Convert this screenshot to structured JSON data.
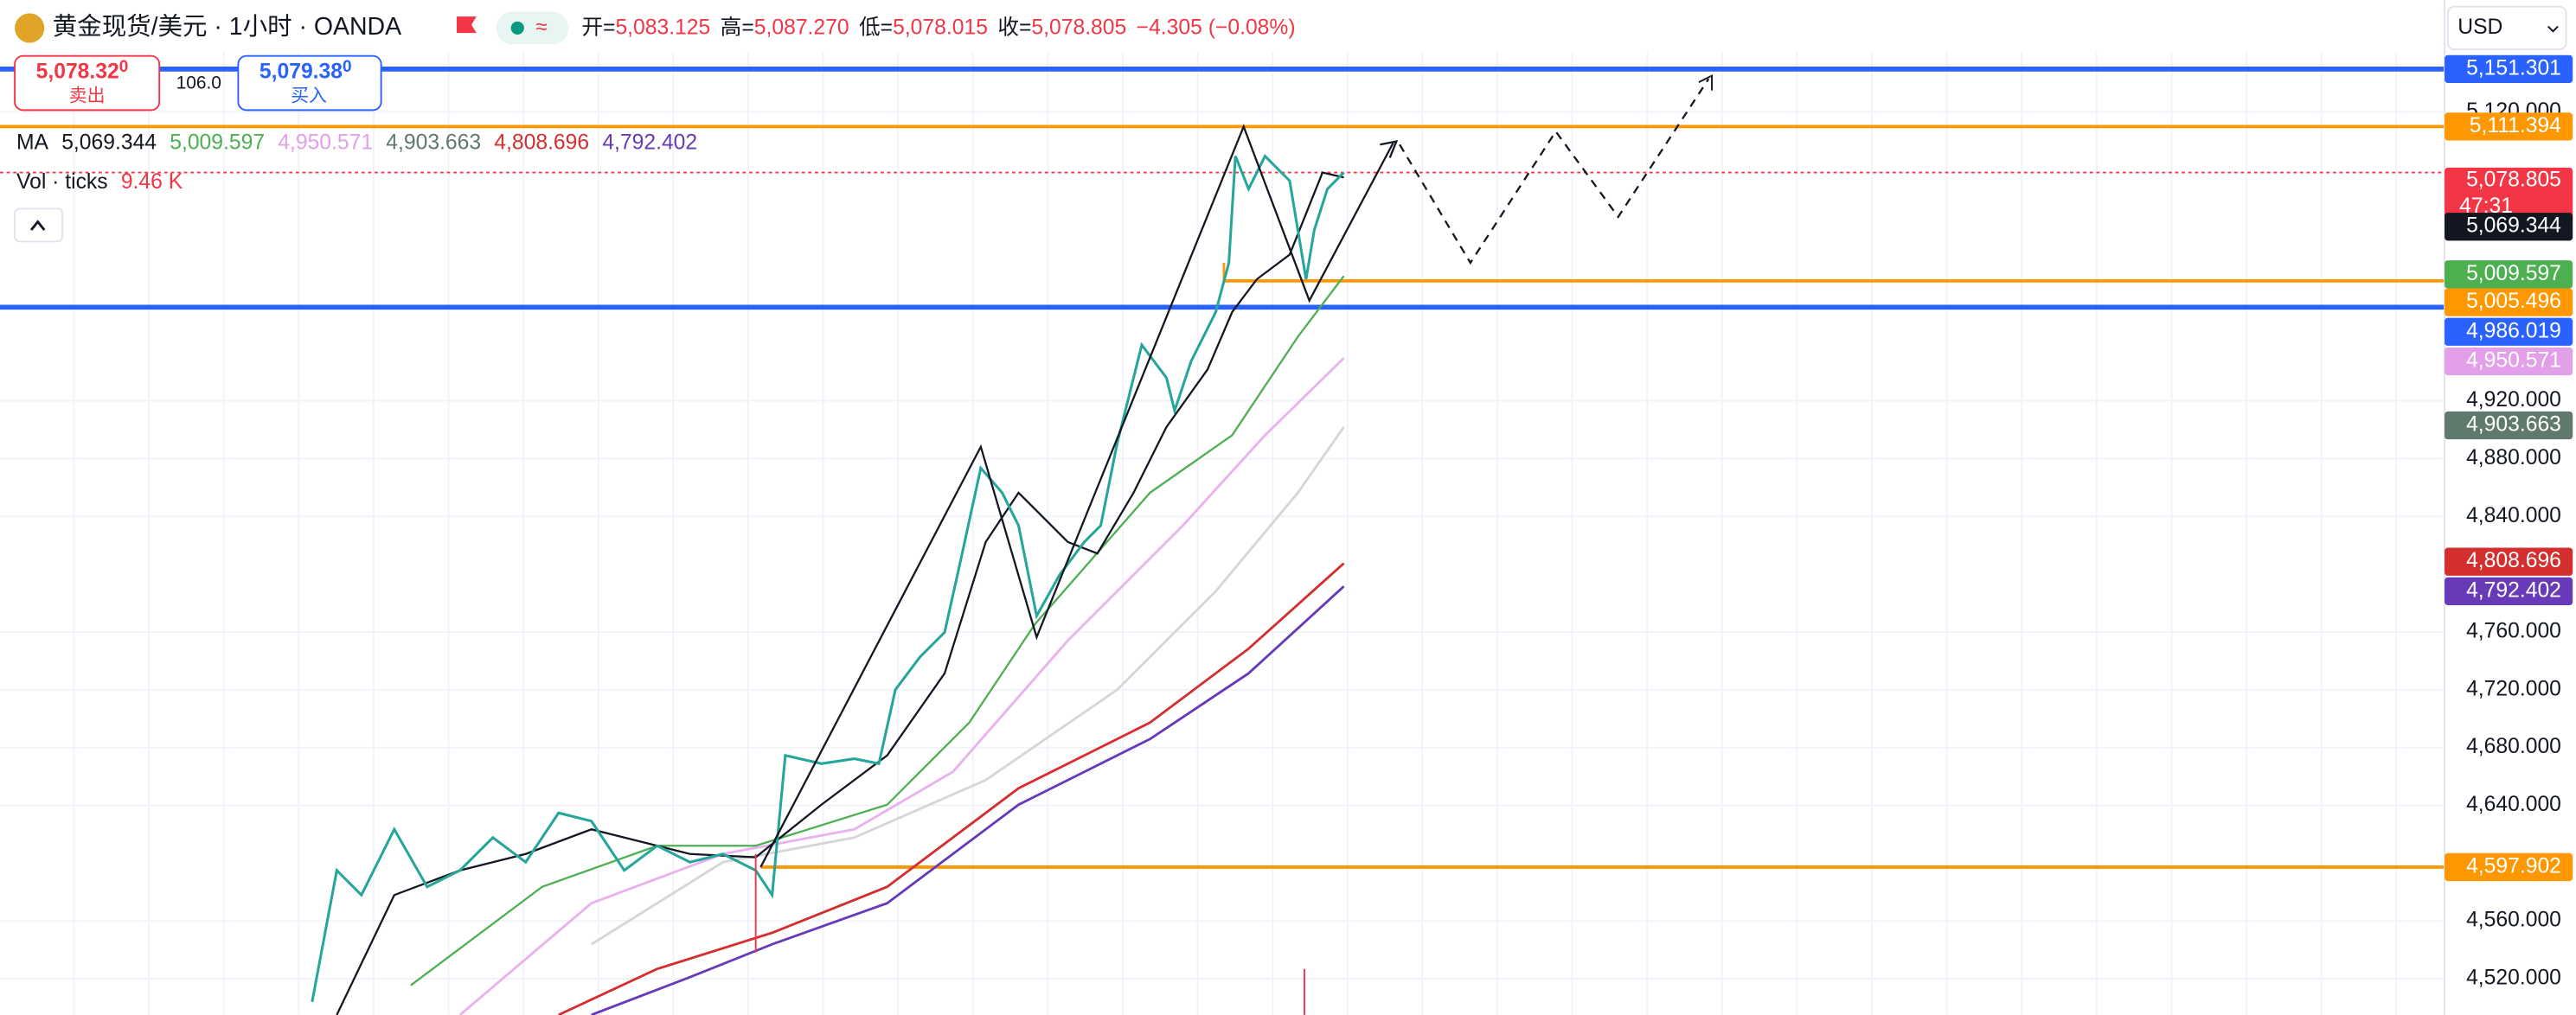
{
  "header": {
    "symbol": "黄金现货/美元 · 1小时 · OANDA",
    "ohlc": [
      {
        "label": "开=",
        "value": "5,083.125"
      },
      {
        "label": "高=",
        "value": "5,087.270"
      },
      {
        "label": "低=",
        "value": "5,078.015"
      },
      {
        "label": "收=",
        "value": "5,078.805"
      }
    ],
    "change": "−4.305 (−0.08%)"
  },
  "trade": {
    "sell": {
      "price": "5,078.32",
      "sup": "0",
      "label": "卖出"
    },
    "spread": "106.0",
    "buy": {
      "price": "5,079.38",
      "sup": "0",
      "label": "买入"
    }
  },
  "indicators": {
    "ma": {
      "label": "MA",
      "values": [
        {
          "text": "5,069.344",
          "color": "#131722"
        },
        {
          "text": "5,009.597",
          "color": "#4caf50"
        },
        {
          "text": "4,950.571",
          "color": "#e1a0e8"
        },
        {
          "text": "4,903.663",
          "color": "#5f7a6c"
        },
        {
          "text": "4,808.696",
          "color": "#d32f2f"
        },
        {
          "text": "4,792.402",
          "color": "#673ab7"
        }
      ]
    },
    "volume": {
      "label": "Vol · ticks",
      "value": "9.46 K"
    }
  },
  "currency": "USD",
  "price_axis": [
    "5,120.000",
    "4,920.000",
    "4,880.000",
    "4,840.000",
    "4,760.000",
    "4,720.000",
    "4,680.000",
    "4,640.000",
    "4,560.000",
    "4,520.000"
  ],
  "price_tags": [
    {
      "text": "5,151.301",
      "color": "#2962ff"
    },
    {
      "text": "5,111.394",
      "color": "#ff9800"
    },
    {
      "text": "5,078.805",
      "sub": "47:31",
      "color": "#f23645"
    },
    {
      "text": "5,069.344",
      "color": "#131722"
    },
    {
      "text": "5,009.597",
      "color": "#4caf50"
    },
    {
      "text": "5,005.496",
      "color": "#ff9800"
    },
    {
      "text": "4,986.019",
      "color": "#2962ff"
    },
    {
      "text": "4,950.571",
      "color": "#e1a0e8"
    },
    {
      "text": "4,903.663",
      "color": "#5f7a6c"
    },
    {
      "text": "4,808.696",
      "color": "#d32f2f"
    },
    {
      "text": "4,792.402",
      "color": "#673ab7"
    },
    {
      "text": "4,597.902",
      "color": "#ff9800"
    }
  ]
}
